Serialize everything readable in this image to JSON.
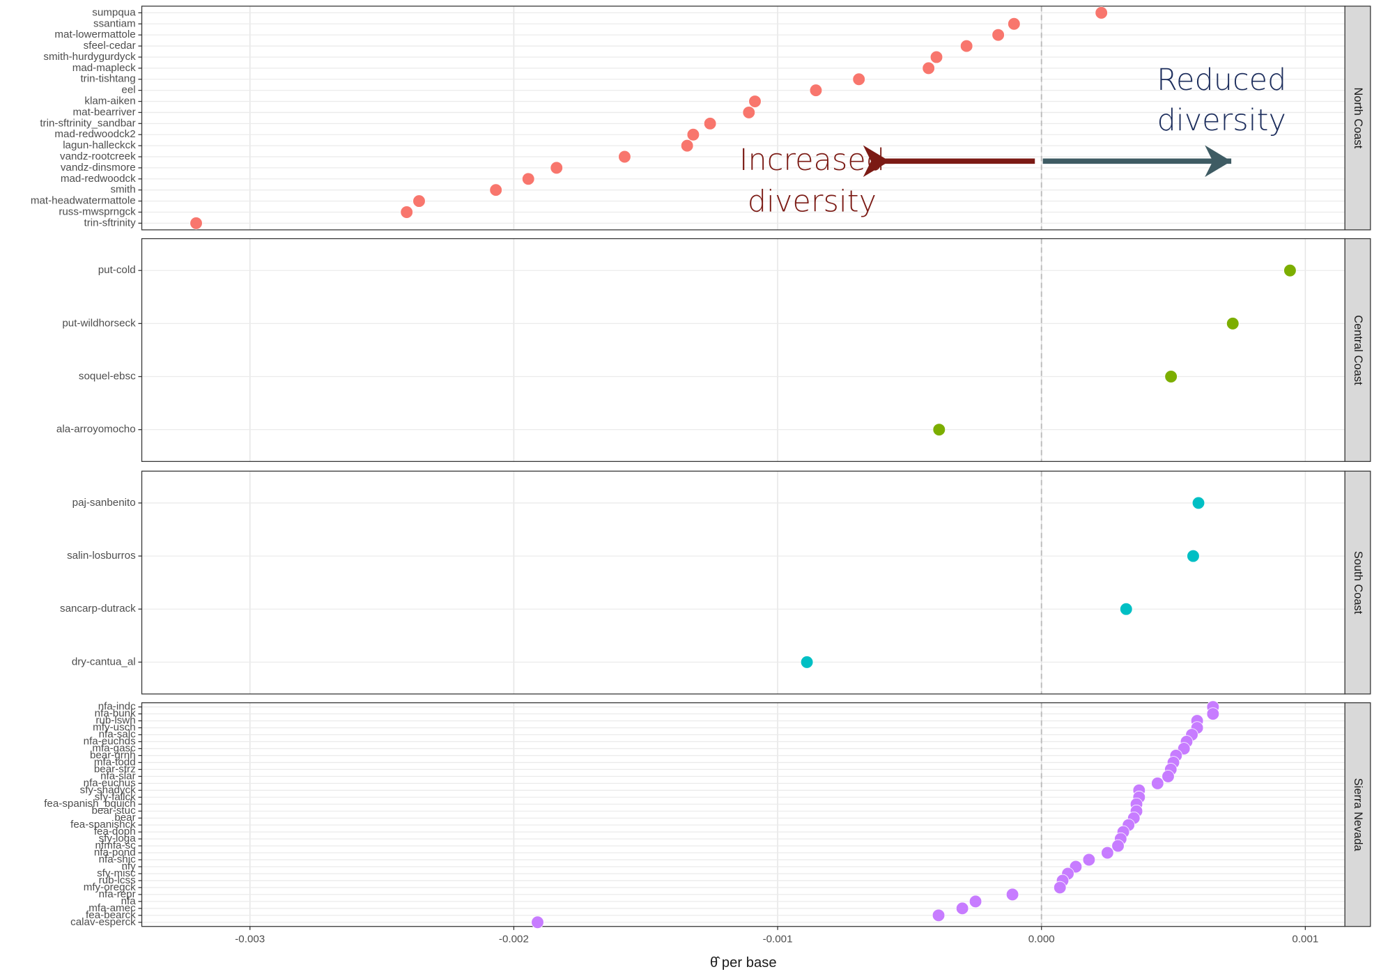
{
  "chart_data": {
    "type": "dot",
    "xlabel": "θ̂ per base",
    "xlim": [
      -0.00341,
      0.00115
    ],
    "xticks": [
      -0.003,
      -0.002,
      -0.001,
      {
        "value": 0,
        "label": "0.000"
      },
      0.001
    ],
    "vline": 0,
    "grid": true,
    "annotations": [
      {
        "text": "Increased",
        "text2": "diversity",
        "color": "#7b1a14"
      },
      {
        "text": "Reduced",
        "text2": "diversity",
        "color": "#1c2d5c"
      }
    ],
    "facets": [
      {
        "name": "North Coast",
        "color": "#F8766D",
        "categories": [
          "sumpqua",
          "ssantiam",
          "mat-lowermattole",
          "sfeel-cedar",
          "smith-hurdygurdyck",
          "mad-mapleck",
          "trin-tishtang",
          "eel",
          "klam-aiken",
          "mat-bearriver",
          "trin-sftrinity_sandbar",
          "mad-redwoodck2",
          "lagun-halleckck",
          "vandz-rootcreek",
          "vandz-dinsmore",
          "mad-redwoodck",
          "smith",
          "mat-headwatermattole",
          "russ-mwsprngck",
          "trin-sftrinity"
        ],
        "values": [
          0.000227,
          -0.000104,
          -0.000164,
          -0.000284,
          -0.000398,
          -0.000428,
          -0.000692,
          -0.000855,
          -0.001086,
          -0.001109,
          -0.001256,
          -0.00132,
          -0.001343,
          -0.00158,
          -0.001838,
          -0.001945,
          -0.002068,
          -0.002359,
          -0.002406,
          -0.003204
        ]
      },
      {
        "name": "Central Coast",
        "color": "#7CAE00",
        "categories": [
          "put-cold",
          "put-wildhorseck",
          "soquel-ebsc",
          "ala-arroyomocho"
        ],
        "values": [
          0.000942,
          0.000725,
          0.000491,
          -0.000388
        ]
      },
      {
        "name": "South Coast",
        "color": "#00BFC4",
        "categories": [
          "paj-sanbenito",
          "salin-losburros",
          "sancarp-dutrack",
          "dry-cantua_al"
        ],
        "values": [
          0.000595,
          0.000575,
          0.000321,
          -0.000889
        ]
      },
      {
        "name": "Sierra Nevada",
        "color": "#C77CFF",
        "categories": [
          "nfa-indc",
          "nfa-bunk",
          "rub-lswh",
          "mfy-usch",
          "nfa-salc",
          "nfa-euchds",
          "mfa-gasc",
          "bear-grnh",
          "mfa-todd",
          "bear-strz",
          "nfa-slar",
          "nfa-euchus",
          "sfy-shadyck",
          "sfy-fallck",
          "fea-spanish_bquich",
          "bear-stuc",
          "bear",
          "fea-spanishck",
          "fea-doph",
          "sfy-loga",
          "nfmfa-sc",
          "nfa-pond",
          "nfa-shic",
          "nfy",
          "sfy-misc",
          "rub-lcss",
          "mfy-oregck",
          "nfa-repr",
          "nfa",
          "mfa-amec",
          "fea-bearck",
          "calav-esperck"
        ],
        "values": [
          0.00065,
          0.00065,
          0.00059,
          0.00059,
          0.00057,
          0.00055,
          0.00054,
          0.00051,
          0.0005,
          0.00049,
          0.00048,
          0.00044,
          0.00037,
          0.00037,
          0.00036,
          0.00036,
          0.00035,
          0.00033,
          0.00031,
          0.0003,
          0.00029,
          0.00025,
          0.00018,
          0.00013,
          0.0001,
          8e-05,
          7e-05,
          -0.00011,
          -0.00025,
          -0.0003,
          -0.00039,
          -0.00191
        ]
      }
    ]
  }
}
